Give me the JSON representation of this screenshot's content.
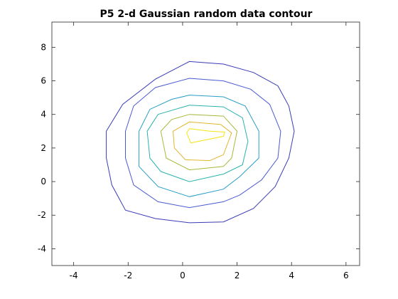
{
  "chart_data": {
    "type": "contour",
    "title": "P5 2-d Gaussian random data contour",
    "xlabel": "",
    "ylabel": "",
    "xlim": [
      -4.8,
      6.5
    ],
    "ylim": [
      -5.0,
      9.5
    ],
    "xticks": [
      -4,
      -2,
      0,
      2,
      4,
      6
    ],
    "xtick_labels": [
      "-4",
      "-2",
      "0",
      "2",
      "4",
      "6"
    ],
    "yticks": [
      -4,
      -2,
      0,
      2,
      4,
      6,
      8
    ],
    "ytick_labels": [
      "-4",
      "-2",
      "0",
      "2",
      "4",
      "6",
      "8"
    ],
    "grid": false,
    "levels": [
      {
        "level": 1,
        "color": "#3b3bb7",
        "points": [
          [
            0.25,
            7.15
          ],
          [
            1.5,
            7.0
          ],
          [
            2.6,
            6.5
          ],
          [
            3.5,
            5.7
          ],
          [
            3.9,
            4.5
          ],
          [
            4.1,
            3.0
          ],
          [
            3.9,
            1.4
          ],
          [
            3.4,
            -0.3
          ],
          [
            2.6,
            -1.6
          ],
          [
            1.5,
            -2.4
          ],
          [
            0.25,
            -2.45
          ],
          [
            -1.0,
            -2.2
          ],
          [
            -2.1,
            -1.7
          ],
          [
            -2.6,
            -0.2
          ],
          [
            -2.8,
            1.4
          ],
          [
            -2.8,
            3.0
          ],
          [
            -2.2,
            4.6
          ],
          [
            -1.0,
            6.1
          ]
        ]
      },
      {
        "level": 2,
        "color": "#4a5ad0",
        "points": [
          [
            0.25,
            6.15
          ],
          [
            1.5,
            6.0
          ],
          [
            2.5,
            5.5
          ],
          [
            3.2,
            4.6
          ],
          [
            3.6,
            3.0
          ],
          [
            3.5,
            1.4
          ],
          [
            2.9,
            0.1
          ],
          [
            2.1,
            -0.8
          ],
          [
            1.5,
            -1.2
          ],
          [
            0.25,
            -1.55
          ],
          [
            -0.9,
            -1.2
          ],
          [
            -1.8,
            -0.2
          ],
          [
            -2.1,
            1.4
          ],
          [
            -2.1,
            3.0
          ],
          [
            -1.8,
            4.5
          ],
          [
            -1.0,
            5.6
          ]
        ]
      },
      {
        "level": 3,
        "color": "#2a9ec8",
        "points": [
          [
            0.25,
            5.15
          ],
          [
            1.5,
            5.05
          ],
          [
            2.3,
            4.5
          ],
          [
            2.8,
            3.0
          ],
          [
            2.8,
            1.4
          ],
          [
            2.1,
            0.3
          ],
          [
            1.5,
            -0.45
          ],
          [
            0.25,
            -0.9
          ],
          [
            -0.9,
            -0.3
          ],
          [
            -1.6,
            0.9
          ],
          [
            -1.6,
            3.0
          ],
          [
            -1.2,
            4.3
          ],
          [
            -0.4,
            4.9
          ]
        ]
      },
      {
        "level": 4,
        "color": "#2ab3b0",
        "points": [
          [
            0.25,
            4.55
          ],
          [
            1.5,
            4.45
          ],
          [
            2.2,
            3.8
          ],
          [
            2.4,
            2.4
          ],
          [
            2.2,
            1.0
          ],
          [
            1.5,
            0.45
          ],
          [
            0.25,
            0.0
          ],
          [
            -0.8,
            0.6
          ],
          [
            -1.2,
            1.4
          ],
          [
            -1.3,
            3.0
          ],
          [
            -0.9,
            4.0
          ]
        ]
      },
      {
        "level": 5,
        "color": "#a8b83a",
        "points": [
          [
            0.25,
            4.0
          ],
          [
            1.5,
            3.9
          ],
          [
            2.0,
            3.0
          ],
          [
            1.8,
            1.4
          ],
          [
            1.5,
            0.9
          ],
          [
            0.25,
            0.7
          ],
          [
            -0.6,
            1.4
          ],
          [
            -0.8,
            3.0
          ],
          [
            -0.4,
            3.7
          ]
        ]
      },
      {
        "level": 6,
        "color": "#e2b530",
        "points": [
          [
            0.25,
            3.55
          ],
          [
            1.4,
            3.4
          ],
          [
            1.8,
            2.9
          ],
          [
            1.5,
            1.6
          ],
          [
            1.0,
            1.25
          ],
          [
            0.1,
            1.3
          ],
          [
            -0.3,
            2.0
          ],
          [
            -0.35,
            3.0
          ]
        ]
      },
      {
        "level": 7,
        "color": "#f5e31a",
        "points": [
          [
            0.25,
            3.15
          ],
          [
            1.0,
            3.0
          ],
          [
            1.55,
            2.95
          ],
          [
            1.5,
            2.7
          ],
          [
            0.3,
            2.3
          ],
          [
            0.15,
            2.9
          ]
        ]
      }
    ]
  }
}
